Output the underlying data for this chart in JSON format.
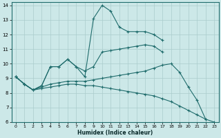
{
  "xlabel": "Humidex (Indice chaleur)",
  "xlim": [
    -0.5,
    23.5
  ],
  "ylim": [
    6,
    14.2
  ],
  "yticks": [
    6,
    7,
    8,
    9,
    10,
    11,
    12,
    13,
    14
  ],
  "xticks": [
    0,
    1,
    2,
    3,
    4,
    5,
    6,
    7,
    8,
    9,
    10,
    11,
    12,
    13,
    14,
    15,
    16,
    17,
    18,
    19,
    20,
    21,
    22,
    23
  ],
  "bg_color": "#cce8e8",
  "line_color": "#1e6b6b",
  "grid_color": "#aacccc",
  "lines": {
    "line1_x": [
      0,
      1,
      2,
      3,
      4,
      5,
      6,
      7,
      8,
      9,
      10,
      11,
      12,
      13,
      14,
      15,
      16,
      17
    ],
    "line1_y": [
      9.1,
      8.6,
      8.2,
      8.5,
      9.8,
      9.8,
      10.3,
      9.8,
      9.1,
      13.1,
      14.0,
      13.6,
      12.5,
      12.2,
      12.2,
      12.2,
      12.0,
      11.6
    ],
    "line2_x": [
      0,
      1,
      2,
      3,
      4,
      5,
      6,
      7,
      8,
      9,
      10,
      11,
      12,
      13,
      14,
      15,
      16,
      17,
      18,
      19,
      20,
      21,
      22
    ],
    "line2_y": [
      9.1,
      8.6,
      8.2,
      8.4,
      8.6,
      8.7,
      8.8,
      8.8,
      8.8,
      8.9,
      9.0,
      9.1,
      9.2,
      9.3,
      9.4,
      9.5,
      9.7,
      9.9,
      10.0,
      9.4,
      8.4,
      7.5,
      6.2
    ],
    "line3_x": [
      0,
      1,
      2,
      3,
      4,
      5,
      6,
      7,
      8,
      9,
      10,
      11,
      12,
      13,
      14,
      15,
      16,
      17,
      18,
      19,
      20,
      21,
      22,
      23
    ],
    "line3_y": [
      9.1,
      8.6,
      8.2,
      8.3,
      8.4,
      8.5,
      8.6,
      8.6,
      8.5,
      8.5,
      8.4,
      8.3,
      8.2,
      8.1,
      8.0,
      7.9,
      7.8,
      7.6,
      7.4,
      7.1,
      6.8,
      6.5,
      6.2,
      6.0
    ],
    "line4_x": [
      0,
      1,
      2,
      3,
      4,
      5,
      6,
      7,
      8,
      9,
      10,
      11,
      12,
      13,
      14,
      15,
      16,
      17
    ],
    "line4_y": [
      9.1,
      8.6,
      8.2,
      8.5,
      9.8,
      9.8,
      10.3,
      9.8,
      9.5,
      9.8,
      10.8,
      10.9,
      11.0,
      11.1,
      11.2,
      11.3,
      11.2,
      10.8
    ]
  }
}
